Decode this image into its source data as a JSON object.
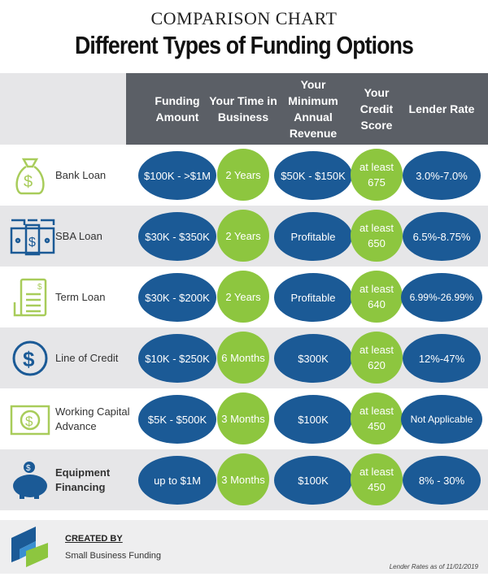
{
  "title": "COMPARISON CHART",
  "subtitle": "Different Types of Funding Options",
  "columns": [
    "Funding Amount",
    "Your Time in Business",
    "Your Minimum Annual Revenue",
    "Your Credit Score",
    "Lender Rate"
  ],
  "rows": [
    {
      "name": "Bank Loan",
      "icon": "money-bag-icon",
      "amount": "$100K - >$1M",
      "time": "2 Years",
      "revenue": "$50K - $150K",
      "credit": "at least 675",
      "rate": "3.0%-7.0%"
    },
    {
      "name": "SBA Loan",
      "icon": "cash-stack-icon",
      "amount": "$30K - $350K",
      "time": "2 Years",
      "revenue": "Profitable",
      "credit": "at least 650",
      "rate": "6.5%-8.75%"
    },
    {
      "name": "Term Loan",
      "icon": "document-icon",
      "amount": "$30K - $200K",
      "time": "2 Years",
      "revenue": "Profitable",
      "credit": "at least 640",
      "rate": "6.99%-26.99%"
    },
    {
      "name": "Line of Credit",
      "icon": "dollar-coin-icon",
      "amount": "$10K - $250K",
      "time": "6 Months",
      "revenue": "$300K",
      "credit": "at least 620",
      "rate": "12%-47%"
    },
    {
      "name": "Working Capital Advance",
      "icon": "banknote-icon",
      "amount": "$5K - $500K",
      "time": "3 Months",
      "revenue": "$100K",
      "credit": "at least 450",
      "rate": "Not Applicable"
    },
    {
      "name": "Equipment Financing",
      "icon": "piggy-bank-icon",
      "amount": "up to $1M",
      "time": "3 Months",
      "revenue": "$100K",
      "credit": "at least 450",
      "rate": "8% - 30%"
    }
  ],
  "footer": {
    "created_by": "CREATED BY",
    "company": "Small Business Funding",
    "note": "Lender Rates as of 11/01/2019"
  },
  "colors": {
    "blue": "#1b5a96",
    "green": "#8dc63f",
    "header": "#5b5f66"
  }
}
